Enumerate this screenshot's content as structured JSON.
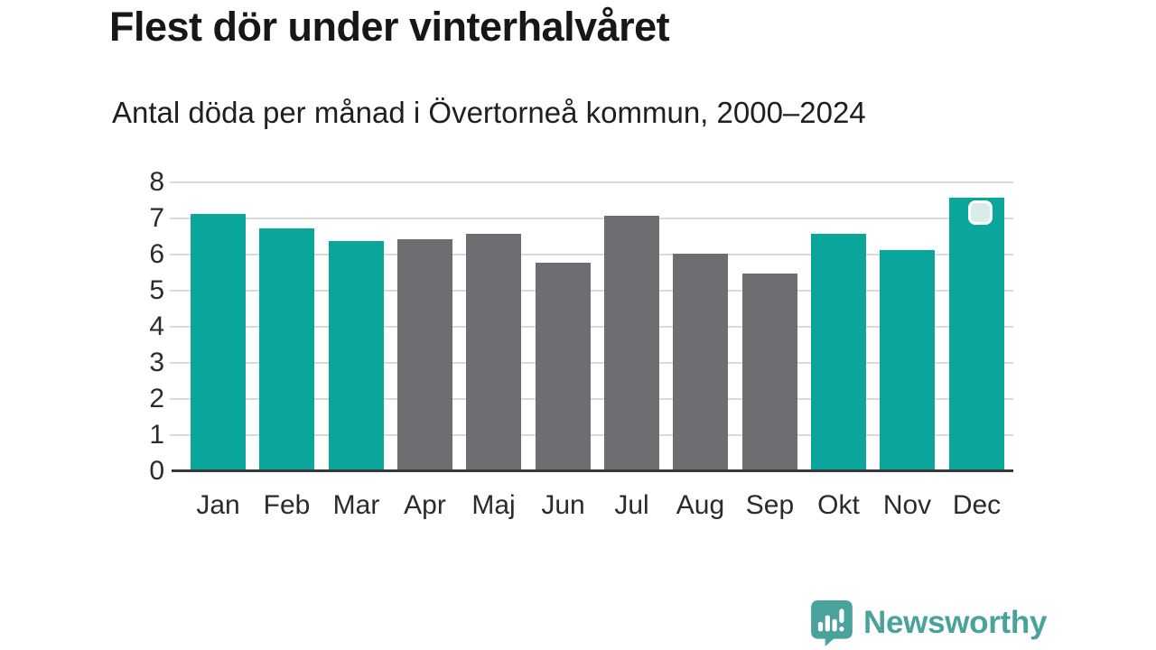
{
  "header": {
    "title": "Flest dör under vinterhalvåret",
    "subtitle": "Antal döda per månad i Övertorneå kommun, 2000–2024"
  },
  "chart_data": {
    "type": "bar",
    "title": "Flest dör under vinterhalvåret",
    "subtitle": "Antal döda per månad i Övertorneå kommun, 2000–2024",
    "categories": [
      "Jan",
      "Feb",
      "Mar",
      "Apr",
      "Maj",
      "Jun",
      "Jul",
      "Aug",
      "Sep",
      "Okt",
      "Nov",
      "Dec"
    ],
    "values": [
      7.1,
      6.7,
      6.35,
      6.4,
      6.55,
      5.75,
      7.05,
      6.0,
      5.45,
      6.55,
      6.1,
      7.55
    ],
    "bar_color_keys": [
      "teal",
      "teal",
      "teal",
      "gray",
      "gray",
      "gray",
      "gray",
      "gray",
      "gray",
      "teal",
      "teal",
      "teal"
    ],
    "colors": {
      "teal": "#0ba69b",
      "gray": "#6d6d72"
    },
    "winter_months_highlighted": [
      "Jan",
      "Feb",
      "Mar",
      "Okt",
      "Nov",
      "Dec"
    ],
    "xlabel": "",
    "ylabel": "",
    "ylim": [
      0,
      8
    ],
    "yticks": [
      0,
      1,
      2,
      3,
      4,
      5,
      6,
      7,
      8
    ],
    "grid": "horizontal",
    "legend": "none",
    "annotation": {
      "target": "Dec",
      "kind": "selection-handle",
      "fill": "#d9ece8",
      "border": "#ffffff"
    }
  },
  "footer": {
    "brand": "Newsworthy",
    "brand_color": "#4aa29c"
  }
}
